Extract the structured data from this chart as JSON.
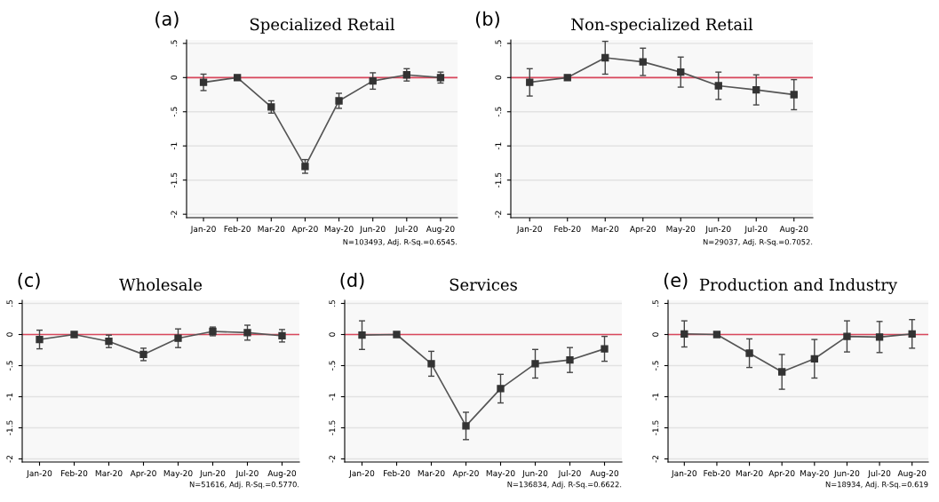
{
  "chart_data": [
    {
      "type": "line",
      "title": "Specialized Retail",
      "annotations": [
        "(a)",
        "N=103493, Adj. R-Sq.=0.6545."
      ],
      "categories": [
        "Jan-20",
        "Feb-20",
        "Mar-20",
        "Apr-20",
        "May-20",
        "Jun-20",
        "Jul-20",
        "Aug-20"
      ],
      "series": [
        {
          "color": "#555555",
          "values": [
            -0.07,
            0,
            -0.43,
            -1.3,
            -0.34,
            -0.05,
            0.04,
            0
          ],
          "errors": [
            0.12,
            null,
            0.09,
            0.1,
            0.11,
            0.12,
            0.09,
            0.08
          ]
        }
      ],
      "ylim": [
        -2.05,
        0.55
      ],
      "yticks": [
        {
          "value": -2,
          "label": "-2"
        },
        {
          "value": -1.5,
          "label": "-1.5"
        },
        {
          "value": -1,
          "label": "-1"
        },
        {
          "value": -0.5,
          "label": "-.5"
        },
        {
          "value": 0,
          "label": "0"
        },
        {
          "value": 0.5,
          "label": ".5"
        }
      ],
      "ref_lines": [
        {
          "axis": "y",
          "value": 0,
          "color": "#d9475c"
        }
      ],
      "grid": "y",
      "marker": "square",
      "line_style": "solid"
    },
    {
      "type": "line",
      "title": "Non-specialized Retail",
      "annotations": [
        "(b)",
        "N=29037, Adj. R-Sq.=0.7052."
      ],
      "categories": [
        "Jan-20",
        "Feb-20",
        "Mar-20",
        "Apr-20",
        "May-20",
        "Jun-20",
        "Jul-20",
        "Aug-20"
      ],
      "series": [
        {
          "color": "#555555",
          "values": [
            -0.07,
            0,
            0.29,
            0.23,
            0.08,
            -0.12,
            -0.18,
            -0.25
          ],
          "errors": [
            0.2,
            null,
            0.24,
            0.2,
            0.22,
            0.2,
            0.22,
            0.22
          ]
        }
      ],
      "ylim": [
        -2.05,
        0.55
      ],
      "yticks": [
        {
          "value": -2,
          "label": "-2"
        },
        {
          "value": -1.5,
          "label": "-1.5"
        },
        {
          "value": -1,
          "label": "-1"
        },
        {
          "value": -0.5,
          "label": "-.5"
        },
        {
          "value": 0,
          "label": "0"
        },
        {
          "value": 0.5,
          "label": ".5"
        }
      ],
      "ref_lines": [
        {
          "axis": "y",
          "value": 0,
          "color": "#d9475c"
        }
      ],
      "grid": "y",
      "marker": "square",
      "line_style": "solid"
    },
    {
      "type": "line",
      "title": "Wholesale",
      "annotations": [
        "(c)",
        "N=51616, Adj. R-Sq.=0.5770."
      ],
      "categories": [
        "Jan-20",
        "Feb-20",
        "Mar-20",
        "Apr-20",
        "May-20",
        "Jun-20",
        "Jul-20",
        "Aug-20"
      ],
      "series": [
        {
          "color": "#555555",
          "values": [
            -0.08,
            0,
            -0.11,
            -0.32,
            -0.06,
            0.05,
            0.03,
            -0.02
          ],
          "errors": [
            0.15,
            null,
            0.1,
            0.1,
            0.15,
            0.07,
            0.12,
            0.1
          ]
        }
      ],
      "ylim": [
        -2.05,
        0.55
      ],
      "yticks": [
        {
          "value": -2,
          "label": "-2"
        },
        {
          "value": -1.5,
          "label": "-1.5"
        },
        {
          "value": -1,
          "label": "-1"
        },
        {
          "value": -0.5,
          "label": "-.5"
        },
        {
          "value": 0,
          "label": "0"
        },
        {
          "value": 0.5,
          "label": ".5"
        }
      ],
      "ref_lines": [
        {
          "axis": "y",
          "value": 0,
          "color": "#d9475c"
        }
      ],
      "grid": "y",
      "marker": "square",
      "line_style": "solid"
    },
    {
      "type": "line",
      "title": "Services",
      "annotations": [
        "(d)",
        "N=136834, Adj. R-Sq.=0.6622."
      ],
      "categories": [
        "Jan-20",
        "Feb-20",
        "Mar-20",
        "Apr-20",
        "May-20",
        "Jun-20",
        "Jul-20",
        "Aug-20"
      ],
      "series": [
        {
          "color": "#555555",
          "values": [
            -0.01,
            0,
            -0.47,
            -1.47,
            -0.87,
            -0.47,
            -0.41,
            -0.23
          ],
          "errors": [
            0.23,
            null,
            0.2,
            0.22,
            0.23,
            0.23,
            0.2,
            0.2
          ]
        }
      ],
      "ylim": [
        -2.05,
        0.55
      ],
      "yticks": [
        {
          "value": -2,
          "label": "-2"
        },
        {
          "value": -1.5,
          "label": "-1.5"
        },
        {
          "value": -1,
          "label": "-1"
        },
        {
          "value": -0.5,
          "label": "-.5"
        },
        {
          "value": 0,
          "label": "0"
        },
        {
          "value": 0.5,
          "label": ".5"
        }
      ],
      "ref_lines": [
        {
          "axis": "y",
          "value": 0,
          "color": "#d9475c"
        }
      ],
      "grid": "y",
      "marker": "square",
      "line_style": "solid"
    },
    {
      "type": "line",
      "title": "Production and Industry",
      "annotations": [
        "(e)",
        "N=18934, Adj. R-Sq.=0.619"
      ],
      "categories": [
        "Jan-20",
        "Feb-20",
        "Mar-20",
        "Apr-20",
        "May-20",
        "Jun-20",
        "Jul-20",
        "Aug-20"
      ],
      "series": [
        {
          "color": "#555555",
          "values": [
            0.01,
            0,
            -0.3,
            -0.6,
            -0.39,
            -0.03,
            -0.04,
            0.01
          ],
          "errors": [
            0.21,
            null,
            0.23,
            0.28,
            0.31,
            0.25,
            0.25,
            0.23
          ]
        }
      ],
      "ylim": [
        -2.05,
        0.55
      ],
      "yticks": [
        {
          "value": -2,
          "label": "-2"
        },
        {
          "value": -1.5,
          "label": "-1.5"
        },
        {
          "value": -1,
          "label": "-1"
        },
        {
          "value": -0.5,
          "label": "-.5"
        },
        {
          "value": 0,
          "label": "0"
        },
        {
          "value": 0.5,
          "label": ".5"
        }
      ],
      "ref_lines": [
        {
          "axis": "y",
          "value": 0,
          "color": "#d9475c"
        }
      ],
      "grid": "y",
      "marker": "square",
      "line_style": "solid"
    }
  ]
}
